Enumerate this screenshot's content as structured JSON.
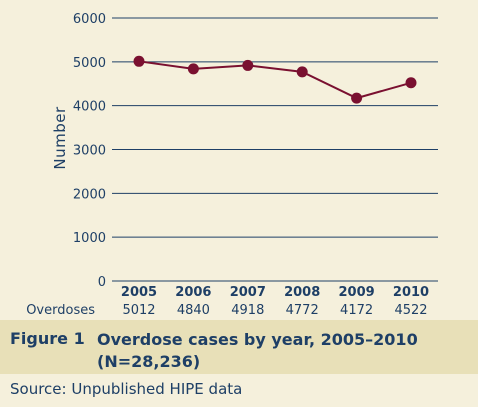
{
  "chart_data": {
    "type": "line",
    "categories": [
      "2005",
      "2006",
      "2007",
      "2008",
      "2009",
      "2010"
    ],
    "series": [
      {
        "name": "Overdoses",
        "values": [
          5012,
          4840,
          4918,
          4772,
          4172,
          4522
        ]
      }
    ],
    "ylabel": "Number",
    "ylim": [
      0,
      6000
    ],
    "yticks": [
      0,
      1000,
      2000,
      3000,
      4000,
      5000,
      6000
    ],
    "grid": true,
    "row_label": "Overdoses",
    "row_values": [
      "5012",
      "4840",
      "4918",
      "4772",
      "4172",
      "4522"
    ],
    "colors": {
      "line": "#7a1030",
      "grid": "#1e3f66",
      "text": "#1e3f66"
    }
  },
  "caption": {
    "figure_label": "Figure 1",
    "title": "Overdose cases by year, 2005–2010 (N=28,236)"
  },
  "source": "Source: Unpublished HIPE data"
}
